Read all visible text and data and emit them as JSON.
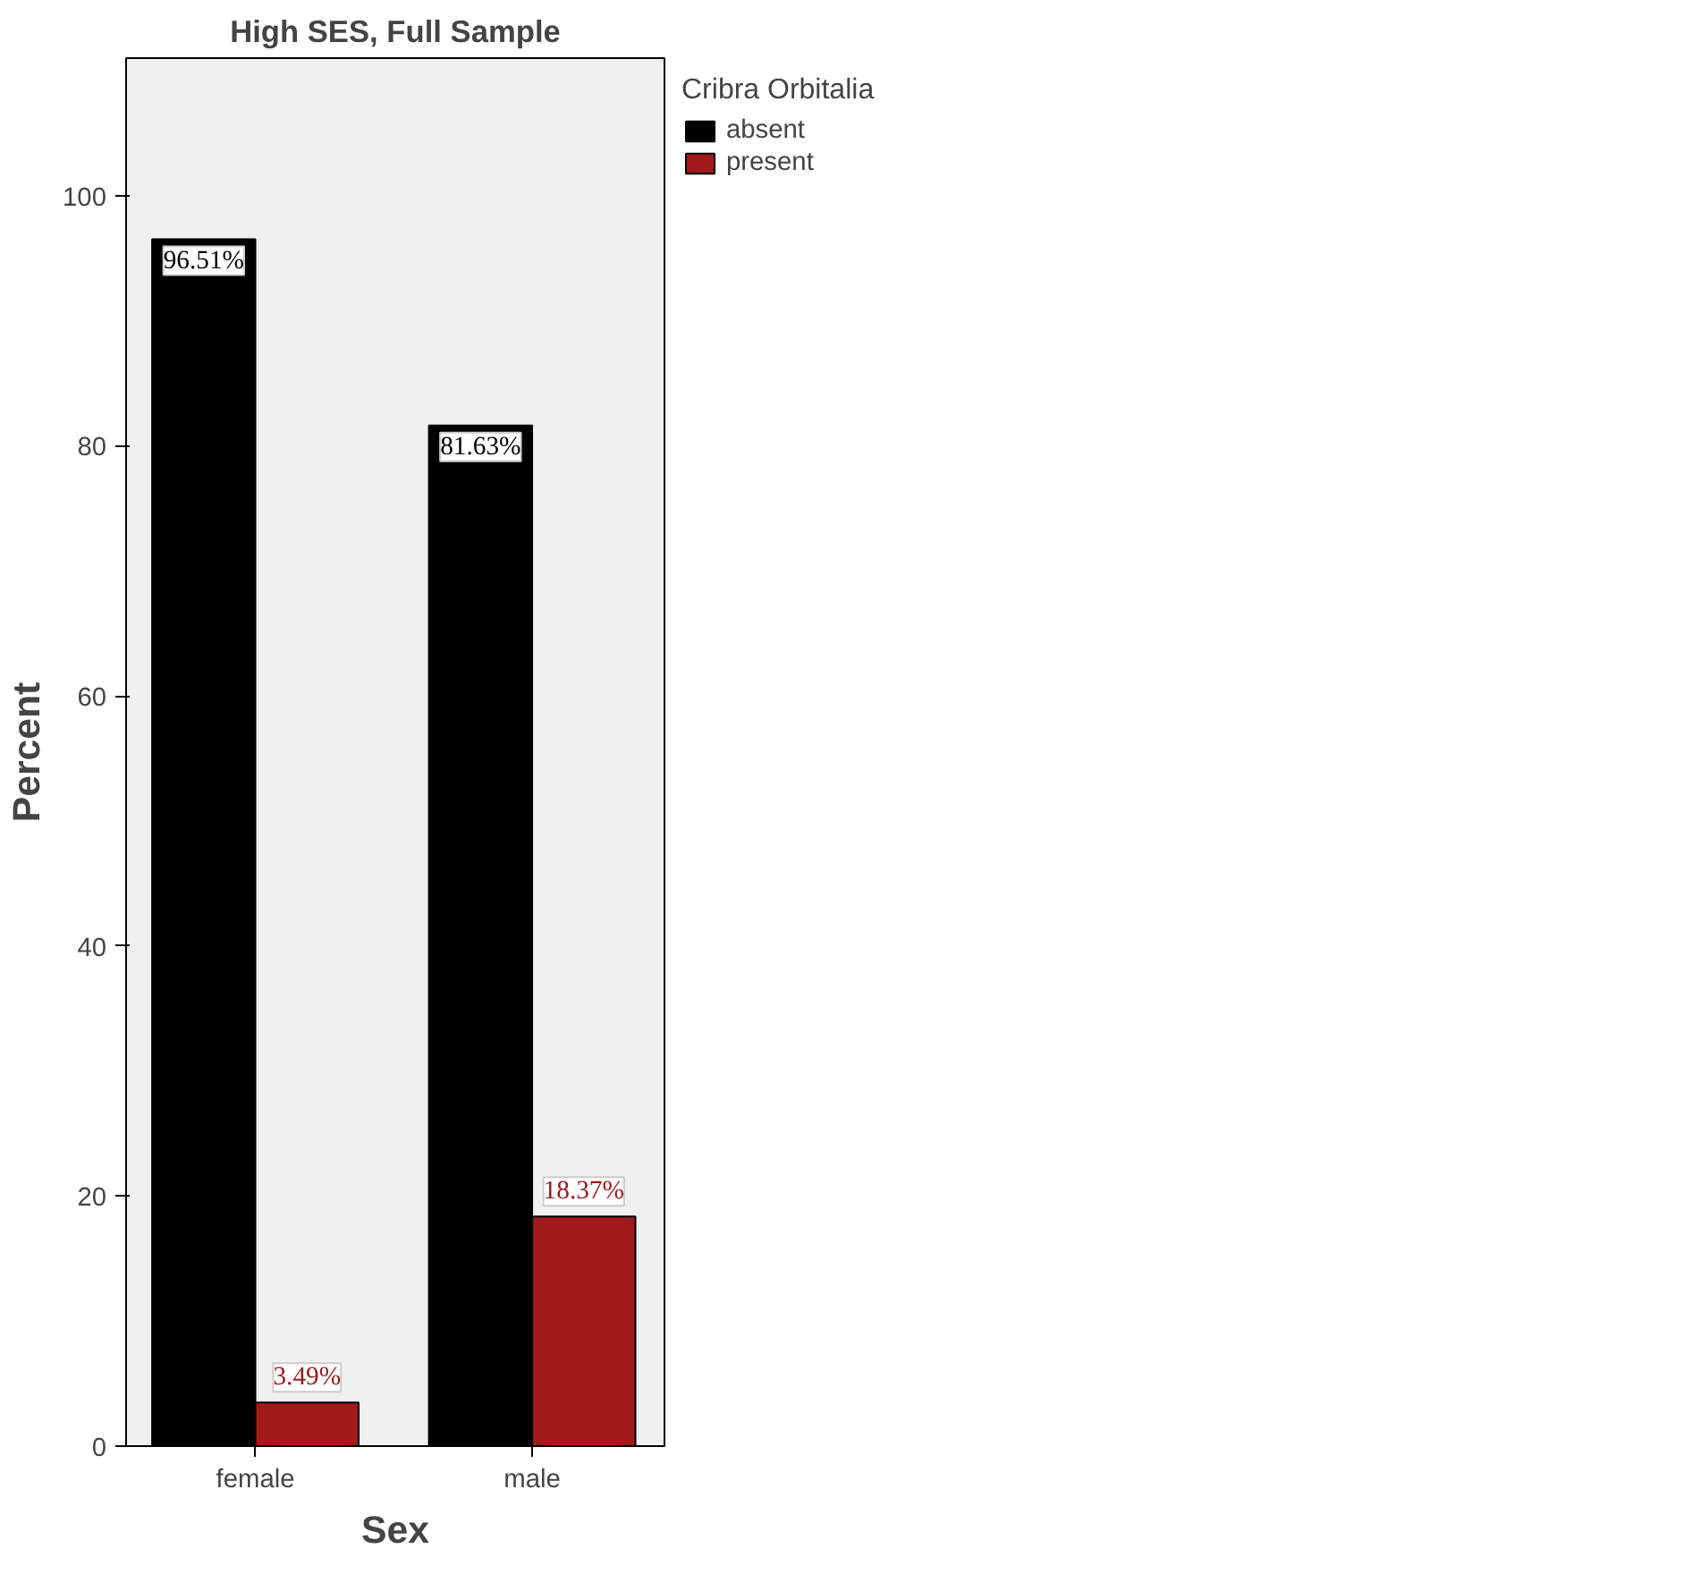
{
  "chart_data": {
    "type": "bar",
    "title": "High SES, Full Sample",
    "xlabel": "Sex",
    "ylabel": "Percent",
    "legend_title": "Cribra Orbitalia",
    "categories": [
      "female",
      "male"
    ],
    "series": [
      {
        "name": "absent",
        "color": "#000000",
        "values": [
          96.51,
          81.63
        ],
        "value_labels": [
          "96.51%",
          "81.63%"
        ]
      },
      {
        "name": "present",
        "color": "#a0191b",
        "values": [
          3.49,
          18.37
        ],
        "value_labels": [
          "3.49%",
          "18.37%"
        ]
      }
    ],
    "ylim": [
      0,
      111
    ],
    "yticks": [
      0,
      20,
      40,
      60,
      80,
      100
    ],
    "grid": false,
    "legend": "top right"
  }
}
